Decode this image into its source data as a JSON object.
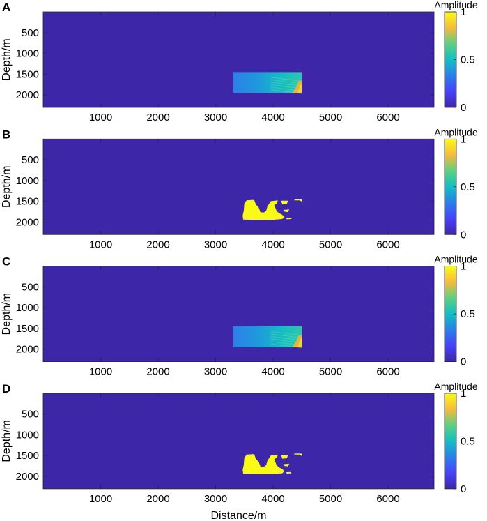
{
  "colormap": [
    "#3e26a8",
    "#4743f8",
    "#2c7fe8",
    "#12bec4",
    "#5ed080",
    "#f8ba3d",
    "#f9fb15"
  ],
  "background_color": "#3e26a8",
  "chart_data": [
    {
      "type": "heatmap",
      "panel_label": "A",
      "ylabel": "Depth/m",
      "xlabel": "",
      "x_ticks": [
        1000,
        2000,
        3000,
        4000,
        5000,
        6000
      ],
      "y_ticks": [
        500,
        1000,
        1500,
        2000
      ],
      "xlim": [
        0,
        6800
      ],
      "ylim": [
        0,
        2300
      ],
      "y_reversed": true,
      "colorbar": {
        "label": "Amplitude",
        "ticks": [
          0,
          0.5,
          1
        ],
        "range": [
          0,
          1
        ]
      },
      "anomaly": {
        "style": "gradient",
        "x_range": [
          3300,
          4500
        ],
        "y_range": [
          1450,
          1950
        ]
      }
    },
    {
      "type": "heatmap",
      "panel_label": "B",
      "ylabel": "Depth/m",
      "xlabel": "",
      "x_ticks": [
        1000,
        2000,
        3000,
        4000,
        5000,
        6000
      ],
      "y_ticks": [
        500,
        1000,
        1500,
        2000
      ],
      "xlim": [
        0,
        6800
      ],
      "ylim": [
        0,
        2300
      ],
      "y_reversed": true,
      "colorbar": {
        "label": "Amplitude",
        "ticks": [
          0,
          0.5,
          1
        ],
        "range": [
          0,
          1
        ]
      },
      "anomaly": {
        "style": "binary",
        "x_range": [
          3500,
          4500
        ],
        "y_range": [
          1420,
          1970
        ]
      }
    },
    {
      "type": "heatmap",
      "panel_label": "C",
      "ylabel": "Depth/m",
      "xlabel": "",
      "x_ticks": [
        1000,
        2000,
        3000,
        4000,
        5000,
        6000
      ],
      "y_ticks": [
        500,
        1000,
        1500,
        2000
      ],
      "xlim": [
        0,
        6800
      ],
      "ylim": [
        0,
        2300
      ],
      "y_reversed": true,
      "colorbar": {
        "label": "Amplitude",
        "ticks": [
          0,
          0.5,
          1
        ],
        "range": [
          0,
          1
        ]
      },
      "anomaly": {
        "style": "gradient",
        "x_range": [
          3300,
          4500
        ],
        "y_range": [
          1450,
          1950
        ]
      }
    },
    {
      "type": "heatmap",
      "panel_label": "D",
      "ylabel": "Depth/m",
      "xlabel": "Distance/m",
      "x_ticks": [
        1000,
        2000,
        3000,
        4000,
        5000,
        6000
      ],
      "y_ticks": [
        500,
        1000,
        1500,
        2000
      ],
      "xlim": [
        0,
        6800
      ],
      "ylim": [
        0,
        2300
      ],
      "y_reversed": true,
      "colorbar": {
        "label": "Amplitude",
        "ticks": [
          0,
          0.5,
          1
        ],
        "range": [
          0,
          1
        ]
      },
      "anomaly": {
        "style": "binary",
        "x_range": [
          3500,
          4500
        ],
        "y_range": [
          1420,
          1970
        ]
      }
    }
  ]
}
